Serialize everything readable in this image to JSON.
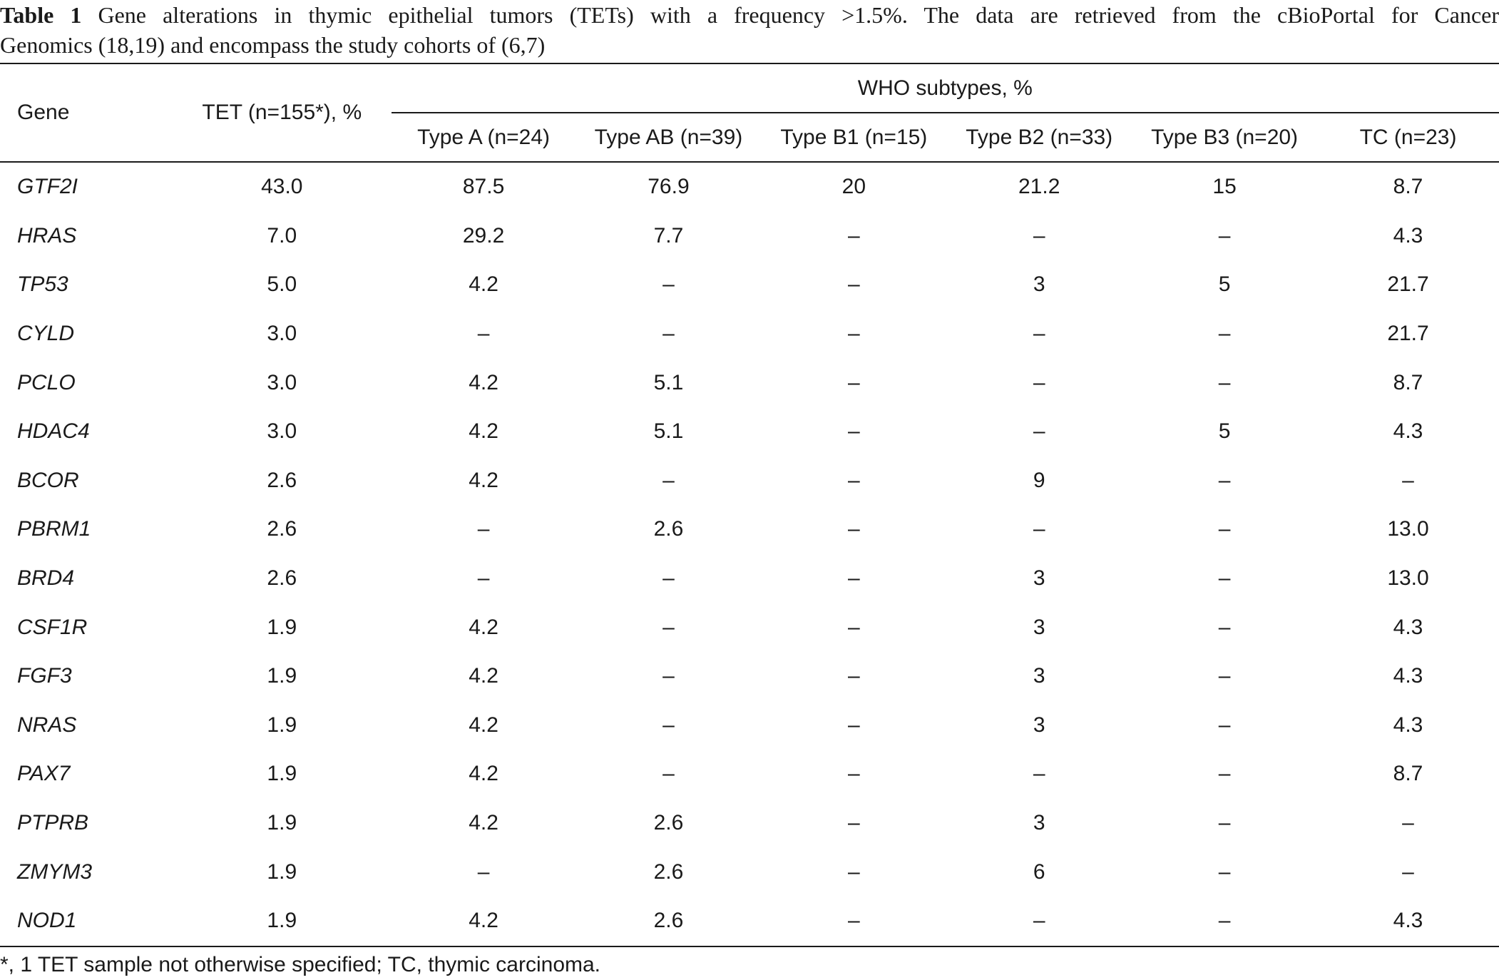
{
  "caption": {
    "label": "Table 1",
    "line1": "Gene alterations in thymic epithelial tumors (TETs) with a frequency >1.5%. The data are retrieved from the cBioPortal for Cancer",
    "line2": "Genomics (18,19) and encompass the study cohorts of (6,7)"
  },
  "header": {
    "gene": "Gene",
    "tet": "TET (n=155*), %",
    "who_group": "WHO subtypes, %",
    "subtypes": [
      "Type A (n=24)",
      "Type AB (n=39)",
      "Type B1 (n=15)",
      "Type B2 (n=33)",
      "Type B3 (n=20)",
      "TC (n=23)"
    ]
  },
  "rows": [
    {
      "gene": "GTF2I",
      "tet": "43.0",
      "a": "87.5",
      "ab": "76.9",
      "b1": "20",
      "b2": "21.2",
      "b3": "15",
      "tc": "8.7"
    },
    {
      "gene": "HRAS",
      "tet": "7.0",
      "a": "29.2",
      "ab": "7.7",
      "b1": "–",
      "b2": "–",
      "b3": "–",
      "tc": "4.3"
    },
    {
      "gene": "TP53",
      "tet": "5.0",
      "a": "4.2",
      "ab": "–",
      "b1": "–",
      "b2": "3",
      "b3": "5",
      "tc": "21.7"
    },
    {
      "gene": "CYLD",
      "tet": "3.0",
      "a": "–",
      "ab": "–",
      "b1": "–",
      "b2": "–",
      "b3": "–",
      "tc": "21.7"
    },
    {
      "gene": "PCLO",
      "tet": "3.0",
      "a": "4.2",
      "ab": "5.1",
      "b1": "–",
      "b2": "–",
      "b3": "–",
      "tc": "8.7"
    },
    {
      "gene": "HDAC4",
      "tet": "3.0",
      "a": "4.2",
      "ab": "5.1",
      "b1": "–",
      "b2": "–",
      "b3": "5",
      "tc": "4.3"
    },
    {
      "gene": "BCOR",
      "tet": "2.6",
      "a": "4.2",
      "ab": "–",
      "b1": "–",
      "b2": "9",
      "b3": "–",
      "tc": "–"
    },
    {
      "gene": "PBRM1",
      "tet": "2.6",
      "a": "–",
      "ab": "2.6",
      "b1": "–",
      "b2": "–",
      "b3": "–",
      "tc": "13.0"
    },
    {
      "gene": "BRD4",
      "tet": "2.6",
      "a": "–",
      "ab": "–",
      "b1": "–",
      "b2": "3",
      "b3": "–",
      "tc": "13.0"
    },
    {
      "gene": "CSF1R",
      "tet": "1.9",
      "a": "4.2",
      "ab": "–",
      "b1": "–",
      "b2": "3",
      "b3": "–",
      "tc": "4.3"
    },
    {
      "gene": "FGF3",
      "tet": "1.9",
      "a": "4.2",
      "ab": "–",
      "b1": "–",
      "b2": "3",
      "b3": "–",
      "tc": "4.3"
    },
    {
      "gene": "NRAS",
      "tet": "1.9",
      "a": "4.2",
      "ab": "–",
      "b1": "–",
      "b2": "3",
      "b3": "–",
      "tc": "4.3"
    },
    {
      "gene": "PAX7",
      "tet": "1.9",
      "a": "4.2",
      "ab": "–",
      "b1": "–",
      "b2": "–",
      "b3": "–",
      "tc": "8.7"
    },
    {
      "gene": "PTPRB",
      "tet": "1.9",
      "a": "4.2",
      "ab": "2.6",
      "b1": "–",
      "b2": "3",
      "b3": "–",
      "tc": "–"
    },
    {
      "gene": "ZMYM3",
      "tet": "1.9",
      "a": "–",
      "ab": "2.6",
      "b1": "–",
      "b2": "6",
      "b3": "–",
      "tc": "–"
    },
    {
      "gene": "NOD1",
      "tet": "1.9",
      "a": "4.2",
      "ab": "2.6",
      "b1": "–",
      "b2": "–",
      "b3": "–",
      "tc": "4.3"
    }
  ],
  "footnote": "*, 1 TET sample not otherwise specified; TC, thymic carcinoma."
}
